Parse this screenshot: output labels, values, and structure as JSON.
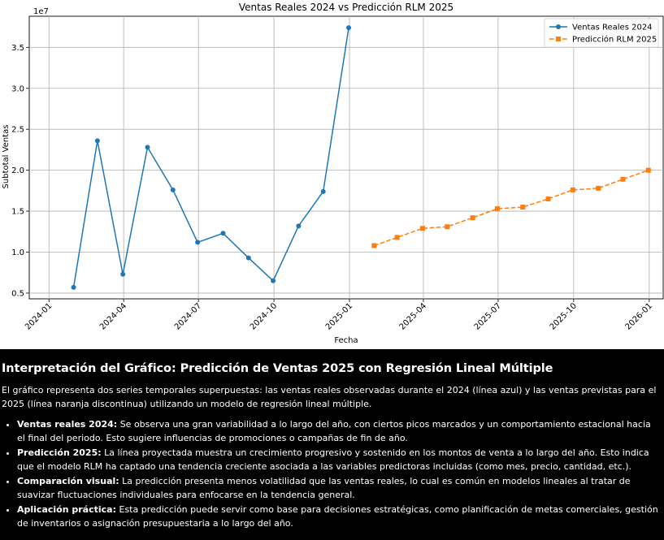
{
  "chart_data": {
    "type": "line",
    "title": "Ventas Reales 2024 vs Predicción RLM 2025",
    "xlabel": "Fecha",
    "ylabel": "Subtotal Ventas",
    "y_scale_label": "1e7",
    "x_ticks": [
      "2024-01",
      "2024-04",
      "2024-07",
      "2024-10",
      "2025-01",
      "2025-04",
      "2025-07",
      "2025-10",
      "2026-01"
    ],
    "y_ticks": [
      "0.5",
      "1.0",
      "1.5",
      "2.0",
      "2.5",
      "3.0",
      "3.5"
    ],
    "ylim": [
      0.43,
      3.88
    ],
    "xlim": [
      "2023-12-08",
      "2026-01-18"
    ],
    "grid": true,
    "legend_position": "top-right",
    "series": [
      {
        "name": "Ventas Reales 2024",
        "color": "#1f77b4",
        "marker": "circle",
        "linestyle": "solid",
        "x": [
          "2024-01-31",
          "2024-02-29",
          "2024-03-31",
          "2024-04-30",
          "2024-05-31",
          "2024-06-30",
          "2024-07-31",
          "2024-08-31",
          "2024-09-30",
          "2024-10-31",
          "2024-11-30",
          "2024-12-31"
        ],
        "values": [
          0.57,
          2.36,
          0.73,
          2.28,
          1.76,
          1.12,
          1.23,
          0.93,
          0.65,
          1.32,
          1.74,
          3.74
        ]
      },
      {
        "name": "Predicción RLM 2025",
        "color": "#ff7f0e",
        "marker": "square",
        "linestyle": "dashed",
        "x": [
          "2025-01-31",
          "2025-02-28",
          "2025-03-31",
          "2025-04-30",
          "2025-05-31",
          "2025-06-30",
          "2025-07-31",
          "2025-08-31",
          "2025-09-30",
          "2025-10-31",
          "2025-11-30",
          "2025-12-31"
        ],
        "values": [
          1.08,
          1.18,
          1.29,
          1.31,
          1.42,
          1.53,
          1.55,
          1.65,
          1.76,
          1.78,
          1.89,
          2.0
        ]
      }
    ]
  },
  "explanation": {
    "heading": "Interpretación del Gráfico: Predicción de Ventas 2025 con Regresión Lineal Múltiple",
    "intro": "El gráfico representa dos series temporales superpuestas: las ventas reales observadas durante el 2024 (línea azul) y las ventas previstas para el 2025 (línea naranja discontinua) utilizando un modelo de regresión lineal múltiple.",
    "bullets": [
      {
        "title": "Ventas reales 2024:",
        "text": " Se observa una gran variabilidad a lo largo del año, con ciertos picos marcados y un comportamiento estacional hacia el final del periodo. Esto sugiere influencias de promociones o campañas de fin de año."
      },
      {
        "title": "Predicción 2025:",
        "text": " La línea proyectada muestra un crecimiento progresivo y sostenido en los montos de venta a lo largo del año. Esto indica que el modelo RLM ha captado una tendencia creciente asociada a las variables predictoras incluidas (como mes, precio, cantidad, etc.)."
      },
      {
        "title": "Comparación visual:",
        "text": " La predicción presenta menos volatilidad que las ventas reales, lo cual es común en modelos lineales al tratar de suavizar fluctuaciones individuales para enfocarse en la tendencia general."
      },
      {
        "title": "Aplicación práctica:",
        "text": " Esta predicción puede servir como base para decisiones estratégicas, como planificación de metas comerciales, gestión de inventarios o asignación presupuestaria a lo largo del año."
      }
    ]
  }
}
